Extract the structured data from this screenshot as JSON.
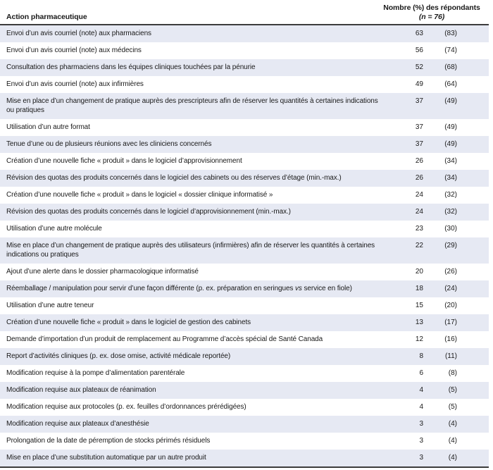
{
  "colors": {
    "row_alternate_background": "#e6e9f3",
    "rule": "#3c3c3c",
    "text": "#1a1a1a"
  },
  "table": {
    "header": {
      "action_label": "Action pharmaceutique",
      "respondents_line1": "Nombre (%) des répondants",
      "respondents_line2": "(n = 76)"
    },
    "rows": [
      {
        "action": "Envoi d’un avis courriel (note) aux pharmaciens",
        "count": 63,
        "percent": "(83)"
      },
      {
        "action": "Envoi d’un avis courriel (note) aux médecins",
        "count": 56,
        "percent": "(74)"
      },
      {
        "action": "Consultation des pharmaciens dans les équipes cliniques touchées par la pénurie",
        "count": 52,
        "percent": "(68)"
      },
      {
        "action": "Envoi d’un avis courriel (note) aux infirmières",
        "count": 49,
        "percent": "(64)"
      },
      {
        "action": "Mise en place d’un changement de pratique auprès des prescripteurs afin de réserver les quantités à certaines indications ou pratiques",
        "count": 37,
        "percent": "(49)"
      },
      {
        "action": "Utilisation d’un autre format",
        "count": 37,
        "percent": "(49)"
      },
      {
        "action": "Tenue d’une ou de plusieurs réunions avec les cliniciens concernés",
        "count": 37,
        "percent": "(49)"
      },
      {
        "action": "Création d’une nouvelle fiche « produit » dans le logiciel d’approvisionnement",
        "count": 26,
        "percent": "(34)"
      },
      {
        "action": "Révision des quotas des produits concernés dans le logiciel des cabinets ou des réserves d’étage (min.-max.)",
        "count": 26,
        "percent": "(34)"
      },
      {
        "action": "Création d’une nouvelle fiche « produit » dans le logiciel « dossier clinique informatisé »",
        "count": 24,
        "percent": "(32)"
      },
      {
        "action": "Révision des quotas des produits concernés dans le logiciel d’approvisionnement (min.-max.)",
        "count": 24,
        "percent": "(32)"
      },
      {
        "action": "Utilisation d’une autre molécule",
        "count": 23,
        "percent": "(30)"
      },
      {
        "action": "Mise en place d’un changement de pratique auprès des utilisateurs (infirmières) afin de réserver les quantités à certaines indications ou pratiques",
        "count": 22,
        "percent": "(29)"
      },
      {
        "action": "Ajout d’une alerte dans le dossier pharmacologique informatisé",
        "count": 20,
        "percent": "(26)"
      },
      {
        "action": "Réemballage / manipulation pour servir d’une façon différente (p. ex. préparation en seringues vs service en fiole)",
        "count": 18,
        "percent": "(24)"
      },
      {
        "action": "Utilisation d’une autre teneur",
        "count": 15,
        "percent": "(20)"
      },
      {
        "action": "Création d’une nouvelle fiche « produit » dans le logiciel de gestion des cabinets",
        "count": 13,
        "percent": "(17)"
      },
      {
        "action": "Demande d’importation d’un produit de remplacement au Programme d’accès spécial de Santé Canada",
        "count": 12,
        "percent": "(16)"
      },
      {
        "action": "Report d’activités cliniques (p. ex. dose omise, activité médicale reportée)",
        "count": 8,
        "percent": "(11)"
      },
      {
        "action": "Modification requise à la pompe d’alimentation parentérale",
        "count": 6,
        "percent": "(8)"
      },
      {
        "action": "Modification requise aux plateaux de réanimation",
        "count": 4,
        "percent": "(5)"
      },
      {
        "action": "Modification requise aux protocoles (p. ex. feuilles d’ordonnances prérédigées)",
        "count": 4,
        "percent": "(5)"
      },
      {
        "action": "Modification requise aux plateaux d’anesthésie",
        "count": 3,
        "percent": "(4)"
      },
      {
        "action": "Prolongation de la date de péremption de stocks périmés résiduels",
        "count": 3,
        "percent": "(4)"
      },
      {
        "action": "Mise en place d’une substitution automatique par un autre produit",
        "count": 3,
        "percent": "(4)"
      }
    ]
  }
}
